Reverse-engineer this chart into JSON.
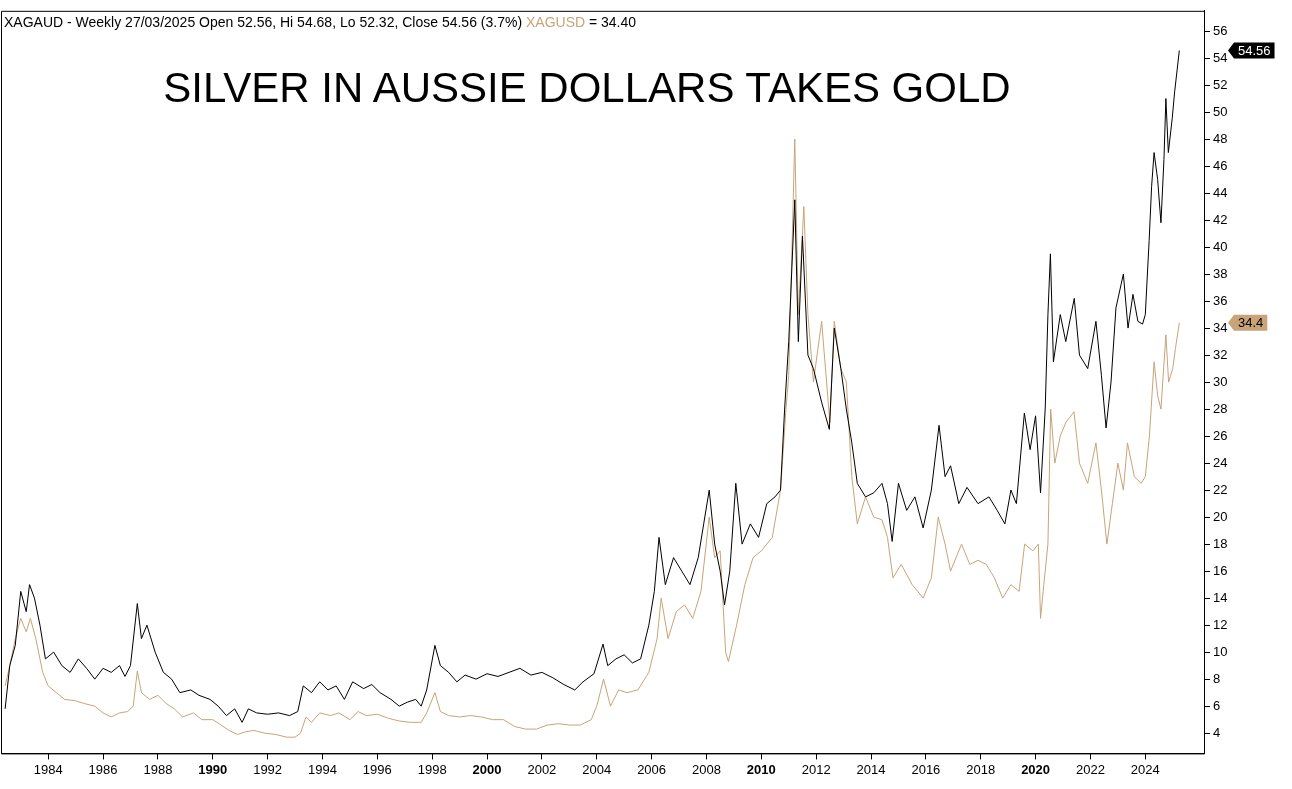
{
  "chart_data": {
    "type": "line",
    "title": "SILVER IN AUSSIE DOLLARS TAKES GOLD",
    "subtitle": "- Weekly 27/03/2025 Open 52.56, Hi 54.68, Lo 52.32, Close 54.56 (3.7%)",
    "legend": "top left",
    "grid": false,
    "marker": "none",
    "line_style": "solid",
    "xlim": [
      1982.28,
      2026.14
    ],
    "xticks": [
      1984,
      1986,
      1988,
      1990,
      1992,
      1994,
      1996,
      1998,
      2000,
      2002,
      2004,
      2006,
      2008,
      2010,
      2012,
      2014,
      2016,
      2018,
      2020,
      2022,
      2024
    ],
    "ylim": [
      2.5,
      57.5
    ],
    "yticks": [
      4,
      6,
      8,
      10,
      12,
      14,
      16,
      18,
      20,
      22,
      24,
      26,
      28,
      30,
      32,
      34,
      36,
      38,
      40,
      42,
      44,
      46,
      48,
      50,
      52,
      54,
      56
    ],
    "annotations": [
      "= 34.40",
      "54.56",
      "34.4"
    ],
    "series": [
      {
        "name": "XAGAUD",
        "color": "#000000",
        "x": [
          1982.43,
          1982.6,
          1982.8,
          1983.0,
          1983.2,
          1983.32,
          1983.5,
          1983.7,
          1983.9,
          1984.2,
          1984.5,
          1984.8,
          1985.1,
          1985.4,
          1985.7,
          1986.0,
          1986.3,
          1986.6,
          1986.8,
          1987.0,
          1987.25,
          1987.4,
          1987.6,
          1987.9,
          1988.2,
          1988.5,
          1988.8,
          1989.2,
          1989.5,
          1989.9,
          1990.2,
          1990.5,
          1990.8,
          1991.07,
          1991.3,
          1991.6,
          1992.0,
          1992.4,
          1992.8,
          1993.1,
          1993.3,
          1993.6,
          1993.9,
          1994.2,
          1994.5,
          1994.8,
          1995.1,
          1995.5,
          1995.8,
          1996.1,
          1996.5,
          1996.8,
          1997.1,
          1997.4,
          1997.6,
          1997.8,
          1998.1,
          1998.3,
          1998.6,
          1998.9,
          1999.2,
          1999.6,
          2000.0,
          2000.4,
          2000.8,
          2001.2,
          2001.6,
          2002.0,
          2002.4,
          2002.8,
          2003.2,
          2003.5,
          2003.9,
          2004.23,
          2004.4,
          2004.7,
          2005.0,
          2005.3,
          2005.6,
          2005.9,
          2006.1,
          2006.27,
          2006.5,
          2006.8,
          2007.1,
          2007.4,
          2007.7,
          2007.9,
          2008.1,
          2008.3,
          2008.5,
          2008.66,
          2008.85,
          2009.07,
          2009.3,
          2009.6,
          2009.9,
          2010.2,
          2010.5,
          2010.7,
          2010.85,
          2011.0,
          2011.22,
          2011.35,
          2011.5,
          2011.7,
          2011.9,
          2012.2,
          2012.48,
          2012.66,
          2012.9,
          2013.1,
          2013.3,
          2013.5,
          2013.8,
          2014.1,
          2014.4,
          2014.6,
          2014.77,
          2015.0,
          2015.3,
          2015.6,
          2015.9,
          2016.2,
          2016.48,
          2016.7,
          2016.9,
          2017.2,
          2017.5,
          2017.9,
          2018.3,
          2018.6,
          2018.88,
          2019.1,
          2019.3,
          2019.59,
          2019.8,
          2020.0,
          2020.18,
          2020.35,
          2020.45,
          2020.54,
          2020.65,
          2020.9,
          2021.1,
          2021.41,
          2021.6,
          2021.9,
          2022.2,
          2022.4,
          2022.57,
          2022.75,
          2022.93,
          2023.2,
          2023.37,
          2023.55,
          2023.73,
          2023.9,
          2024.0,
          2024.14,
          2024.23,
          2024.32,
          2024.45,
          2024.57,
          2024.68,
          2024.75,
          2024.84,
          2024.98,
          2025.07,
          2025.24
        ],
        "values": [
          5.8,
          9,
          10.5,
          14.5,
          13,
          15,
          14,
          12,
          9.5,
          10,
          9,
          8.5,
          9.5,
          8.8,
          8,
          8.8,
          8.5,
          9,
          8.2,
          9,
          13.6,
          11,
          12,
          10,
          8.5,
          8,
          7,
          7.2,
          6.8,
          6.5,
          6,
          5.3,
          5.8,
          4.8,
          5.8,
          5.5,
          5.4,
          5.5,
          5.3,
          5.6,
          7.5,
          7,
          7.8,
          7.2,
          7.5,
          6.5,
          7.8,
          7.3,
          7.6,
          7,
          6.5,
          6,
          6.3,
          6.5,
          6,
          7.2,
          10.5,
          9,
          8.5,
          7.8,
          8.3,
          8,
          8.4,
          8.2,
          8.5,
          8.8,
          8.3,
          8.5,
          8.1,
          7.6,
          7.2,
          7.8,
          8.4,
          10.6,
          9,
          9.5,
          9.8,
          9.2,
          9.5,
          12,
          14.5,
          18.5,
          15,
          17,
          16,
          15,
          17,
          19.5,
          22,
          18,
          16,
          13.5,
          16,
          22.5,
          18,
          19.5,
          18.5,
          21,
          21.5,
          22,
          28,
          33,
          43.5,
          33,
          40.8,
          32,
          31,
          28.5,
          26.5,
          34,
          31,
          28,
          25.5,
          22.5,
          21.5,
          21.8,
          22.5,
          21,
          18.2,
          22.5,
          20.5,
          21.5,
          19.2,
          22,
          26.8,
          23,
          23.8,
          21,
          22.2,
          21,
          21.5,
          20.5,
          19.5,
          22,
          21,
          27.7,
          25,
          27.5,
          21.8,
          28,
          35,
          39.5,
          31.5,
          35,
          33,
          36.2,
          32,
          31,
          34.5,
          30.5,
          26.6,
          30,
          35.5,
          38,
          34,
          36.5,
          34.5,
          34.3,
          35,
          40.5,
          44.5,
          47,
          45,
          41.8,
          46.5,
          51,
          47,
          49.5,
          51.5,
          54.56
        ]
      },
      {
        "name": "XAGUSD",
        "color": "#c8a478",
        "x": [
          1982.43,
          1982.6,
          1982.8,
          1983.0,
          1983.2,
          1983.35,
          1983.55,
          1983.8,
          1984.0,
          1984.3,
          1984.6,
          1985.0,
          1985.3,
          1985.7,
          1986.0,
          1986.3,
          1986.6,
          1986.9,
          1987.1,
          1987.25,
          1987.4,
          1987.7,
          1988.0,
          1988.3,
          1988.6,
          1988.9,
          1989.3,
          1989.6,
          1990.0,
          1990.3,
          1990.6,
          1990.9,
          1991.2,
          1991.5,
          1991.9,
          1992.3,
          1992.7,
          1993.0,
          1993.2,
          1993.4,
          1993.6,
          1993.9,
          1994.3,
          1994.6,
          1995.0,
          1995.3,
          1995.6,
          1996.0,
          1996.4,
          1996.8,
          1997.2,
          1997.6,
          1997.8,
          1998.1,
          1998.3,
          1998.6,
          1999.0,
          1999.4,
          1999.8,
          2000.2,
          2000.6,
          2001.0,
          2001.4,
          2001.8,
          2002.2,
          2002.6,
          2003.0,
          2003.4,
          2003.8,
          2004.0,
          2004.25,
          2004.5,
          2004.8,
          2005.1,
          2005.5,
          2005.9,
          2006.2,
          2006.35,
          2006.6,
          2006.9,
          2007.2,
          2007.5,
          2007.8,
          2008.1,
          2008.3,
          2008.5,
          2008.7,
          2008.8,
          2009.1,
          2009.4,
          2009.7,
          2010.0,
          2010.4,
          2010.7,
          2010.9,
          2011.0,
          2011.22,
          2011.35,
          2011.55,
          2011.7,
          2011.9,
          2012.2,
          2012.5,
          2012.66,
          2012.9,
          2013.1,
          2013.3,
          2013.5,
          2013.8,
          2014.1,
          2014.4,
          2014.6,
          2014.8,
          2015.1,
          2015.5,
          2015.9,
          2016.2,
          2016.45,
          2016.7,
          2016.9,
          2017.3,
          2017.6,
          2017.9,
          2018.2,
          2018.5,
          2018.8,
          2019.1,
          2019.4,
          2019.6,
          2019.9,
          2020.1,
          2020.18,
          2020.3,
          2020.45,
          2020.55,
          2020.7,
          2020.9,
          2021.1,
          2021.4,
          2021.6,
          2021.9,
          2022.2,
          2022.4,
          2022.6,
          2022.8,
          2023.0,
          2023.2,
          2023.35,
          2023.6,
          2023.85,
          2024.0,
          2024.15,
          2024.32,
          2024.45,
          2024.57,
          2024.75,
          2024.85,
          2025.0,
          2025.1,
          2025.24
        ],
        "values": [
          7.5,
          9,
          11,
          12.5,
          11.5,
          12.5,
          11,
          8.5,
          7.5,
          7,
          6.5,
          6.4,
          6.2,
          6,
          5.5,
          5.2,
          5.5,
          5.6,
          6,
          8.6,
          7,
          6.5,
          6.8,
          6.2,
          5.8,
          5.2,
          5.5,
          5,
          5,
          4.6,
          4.2,
          3.9,
          4.1,
          4.2,
          4,
          3.9,
          3.7,
          3.7,
          4,
          5.2,
          4.8,
          5.5,
          5.3,
          5.5,
          5,
          5.6,
          5.3,
          5.4,
          5.1,
          4.9,
          4.8,
          4.8,
          5.5,
          7,
          5.6,
          5.3,
          5.2,
          5.3,
          5.2,
          5,
          5,
          4.5,
          4.3,
          4.3,
          4.6,
          4.7,
          4.6,
          4.6,
          5,
          6,
          8,
          6,
          7.2,
          7,
          7.2,
          8.5,
          11,
          14,
          11,
          13,
          13.5,
          12.5,
          14.5,
          20,
          17,
          17.5,
          10,
          9.3,
          12,
          15,
          17,
          17.5,
          18.5,
          22,
          28,
          30.5,
          48,
          35,
          43,
          35,
          30,
          34.5,
          27,
          34.5,
          31,
          30,
          23,
          19.5,
          21.5,
          20,
          19.8,
          18.5,
          15.5,
          16.5,
          15,
          14,
          15.5,
          20,
          18,
          16,
          18,
          16.5,
          16.8,
          16.5,
          15.5,
          14,
          15,
          14.5,
          18,
          17.5,
          18,
          12.5,
          15,
          18,
          28,
          24,
          26,
          27,
          27.8,
          24,
          22.5,
          25.5,
          22,
          18,
          21,
          24,
          22,
          25.5,
          23,
          22.5,
          23,
          26,
          31.5,
          29,
          28,
          33.5,
          30,
          31,
          32.5,
          34.4
        ]
      }
    ]
  }
}
